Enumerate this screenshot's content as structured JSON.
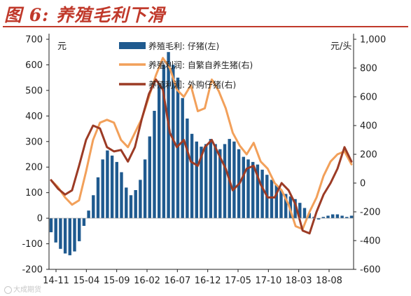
{
  "figure": {
    "title": "图 6:  养殖毛利下滑",
    "watermark": "大成期货"
  },
  "colors": {
    "title": "#c0392b",
    "bars": "#1f5a8f",
    "line_self_breed": "#f2a05a",
    "line_purchased": "#9c3b25",
    "axis": "#222222"
  },
  "chart_data": {
    "type": "bar",
    "title": "养殖毛利下滑",
    "y_left": {
      "unit_label": "元",
      "range": [
        -200,
        700
      ],
      "ticks": [
        -200,
        -100,
        0,
        100,
        200,
        300,
        400,
        500,
        600,
        700
      ]
    },
    "y_right": {
      "unit_label": "元/头",
      "range": [
        -600,
        1000
      ],
      "ticks": [
        -600,
        -400,
        -200,
        0,
        200,
        400,
        600,
        800,
        1000
      ],
      "tick_labels": [
        "-600",
        "-400",
        "-200",
        "0",
        "200",
        "400",
        "600",
        "800",
        "1,000"
      ]
    },
    "x_ticks": [
      "14-11",
      "15-04",
      "15-09",
      "16-02",
      "16-07",
      "16-12",
      "17-05",
      "17-10",
      "18-03",
      "18-08"
    ],
    "legend_position": "top-center",
    "series": [
      {
        "name": "养殖毛利: 仔猪(左)",
        "kind": "bar",
        "axis": "left",
        "points": [
          [
            0,
            -55
          ],
          [
            1,
            -95
          ],
          [
            2,
            -120
          ],
          [
            3,
            -138
          ],
          [
            4,
            -145
          ],
          [
            5,
            -130
          ],
          [
            6,
            -90
          ],
          [
            7,
            -30
          ],
          [
            8,
            30
          ],
          [
            9,
            90
          ],
          [
            10,
            160
          ],
          [
            11,
            230
          ],
          [
            12,
            265
          ],
          [
            13,
            245
          ],
          [
            14,
            220
          ],
          [
            15,
            180
          ],
          [
            16,
            120
          ],
          [
            17,
            90
          ],
          [
            18,
            110
          ],
          [
            19,
            150
          ],
          [
            20,
            230
          ],
          [
            21,
            320
          ],
          [
            22,
            420
          ],
          [
            23,
            520
          ],
          [
            24,
            600
          ],
          [
            25,
            650
          ],
          [
            26,
            600
          ],
          [
            27,
            550
          ],
          [
            28,
            470
          ],
          [
            29,
            390
          ],
          [
            30,
            330
          ],
          [
            31,
            300
          ],
          [
            32,
            280
          ],
          [
            33,
            290
          ],
          [
            34,
            310
          ],
          [
            35,
            290
          ],
          [
            36,
            270
          ],
          [
            37,
            290
          ],
          [
            38,
            310
          ],
          [
            39,
            300
          ],
          [
            40,
            270
          ],
          [
            41,
            240
          ],
          [
            42,
            230
          ],
          [
            43,
            220
          ],
          [
            44,
            210
          ],
          [
            45,
            190
          ],
          [
            46,
            170
          ],
          [
            47,
            150
          ],
          [
            48,
            130
          ],
          [
            49,
            110
          ],
          [
            50,
            95
          ],
          [
            51,
            85
          ],
          [
            52,
            75
          ],
          [
            53,
            60
          ],
          [
            54,
            40
          ],
          [
            55,
            20
          ],
          [
            56,
            5
          ],
          [
            57,
            -5
          ],
          [
            58,
            5
          ],
          [
            59,
            10
          ],
          [
            60,
            15
          ],
          [
            61,
            15
          ],
          [
            62,
            10
          ],
          [
            63,
            5
          ],
          [
            64,
            10
          ]
        ]
      },
      {
        "name": "养殖利润: 自繁自养生猪(右)",
        "kind": "line",
        "axis": "right",
        "points": [
          [
            0,
            20
          ],
          [
            1,
            -30
          ],
          [
            2,
            -100
          ],
          [
            3,
            -150
          ],
          [
            4,
            -120
          ],
          [
            5,
            80
          ],
          [
            6,
            300
          ],
          [
            7,
            420
          ],
          [
            8,
            440
          ],
          [
            9,
            420
          ],
          [
            10,
            300
          ],
          [
            11,
            250
          ],
          [
            12,
            350
          ],
          [
            13,
            450
          ],
          [
            14,
            600
          ],
          [
            15,
            750
          ],
          [
            16,
            870
          ],
          [
            17,
            800
          ],
          [
            18,
            650
          ],
          [
            19,
            600
          ],
          [
            20,
            680
          ],
          [
            21,
            500
          ],
          [
            22,
            520
          ],
          [
            23,
            720
          ],
          [
            24,
            640
          ],
          [
            25,
            520
          ],
          [
            26,
            350
          ],
          [
            27,
            260
          ],
          [
            28,
            200
          ],
          [
            29,
            280
          ],
          [
            30,
            150
          ],
          [
            31,
            100
          ],
          [
            32,
            0
          ],
          [
            33,
            -50
          ],
          [
            34,
            -150
          ],
          [
            35,
            -300
          ],
          [
            36,
            -320
          ],
          [
            37,
            -200
          ],
          [
            38,
            -100
          ],
          [
            39,
            50
          ],
          [
            40,
            150
          ],
          [
            41,
            200
          ],
          [
            42,
            220
          ],
          [
            43,
            130
          ]
        ]
      },
      {
        "name": "养殖利润: 外购仔猪(右)",
        "kind": "line",
        "axis": "right",
        "points": [
          [
            0,
            20
          ],
          [
            1,
            -40
          ],
          [
            2,
            -80
          ],
          [
            3,
            -50
          ],
          [
            4,
            120
          ],
          [
            5,
            300
          ],
          [
            6,
            400
          ],
          [
            7,
            380
          ],
          [
            8,
            250
          ],
          [
            9,
            220
          ],
          [
            10,
            230
          ],
          [
            11,
            150
          ],
          [
            12,
            250
          ],
          [
            13,
            450
          ],
          [
            14,
            620
          ],
          [
            15,
            720
          ],
          [
            16,
            650
          ],
          [
            17,
            350
          ],
          [
            18,
            250
          ],
          [
            19,
            300
          ],
          [
            20,
            150
          ],
          [
            21,
            120
          ],
          [
            22,
            250
          ],
          [
            23,
            300
          ],
          [
            24,
            200
          ],
          [
            25,
            100
          ],
          [
            26,
            -50
          ],
          [
            27,
            0
          ],
          [
            28,
            100
          ],
          [
            29,
            120
          ],
          [
            30,
            -10
          ],
          [
            31,
            -100
          ],
          [
            32,
            -100
          ],
          [
            33,
            0
          ],
          [
            34,
            -50
          ],
          [
            35,
            -150
          ],
          [
            36,
            -330
          ],
          [
            37,
            -350
          ],
          [
            38,
            -200
          ],
          [
            39,
            -80
          ],
          [
            40,
            0
          ],
          [
            41,
            100
          ],
          [
            42,
            250
          ],
          [
            43,
            150
          ]
        ]
      }
    ]
  }
}
